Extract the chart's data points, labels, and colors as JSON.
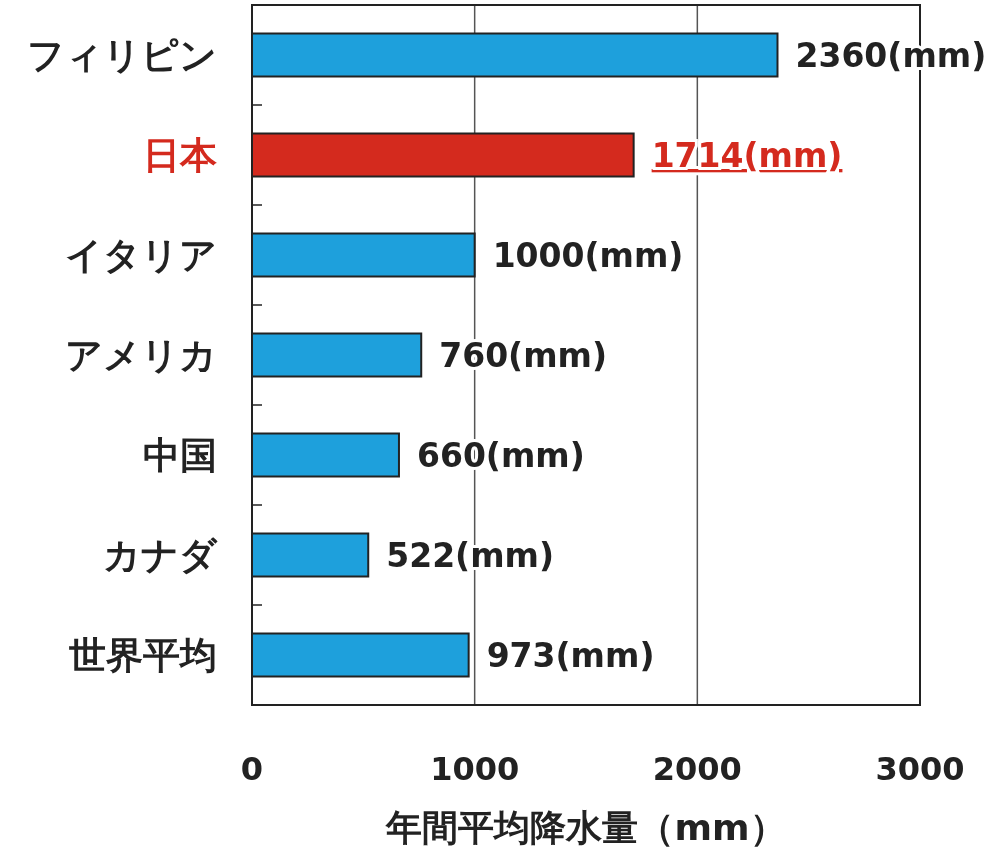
{
  "chart_data": {
    "type": "bar",
    "orientation": "horizontal",
    "xlabel": "年間平均降水量（mm）",
    "categories": [
      "フィリピン",
      "日本",
      "イタリア",
      "アメリカ",
      "中国",
      "カナダ",
      "世界平均"
    ],
    "values": [
      2360,
      1714,
      1000,
      760,
      660,
      522,
      973
    ],
    "colors": [
      "#1ea0dc",
      "#d42a1e",
      "#1ea0dc",
      "#1ea0dc",
      "#1ea0dc",
      "#1ea0dc",
      "#1ea0dc"
    ],
    "value_labels": [
      "2360(mm)",
      "1714(mm)",
      "1000(mm)",
      "760(mm)",
      "660(mm)",
      "522(mm)",
      "973(mm)"
    ],
    "xlim": [
      0,
      3000
    ],
    "xticks": [
      0,
      1000,
      2000,
      3000
    ],
    "grid": "x"
  }
}
